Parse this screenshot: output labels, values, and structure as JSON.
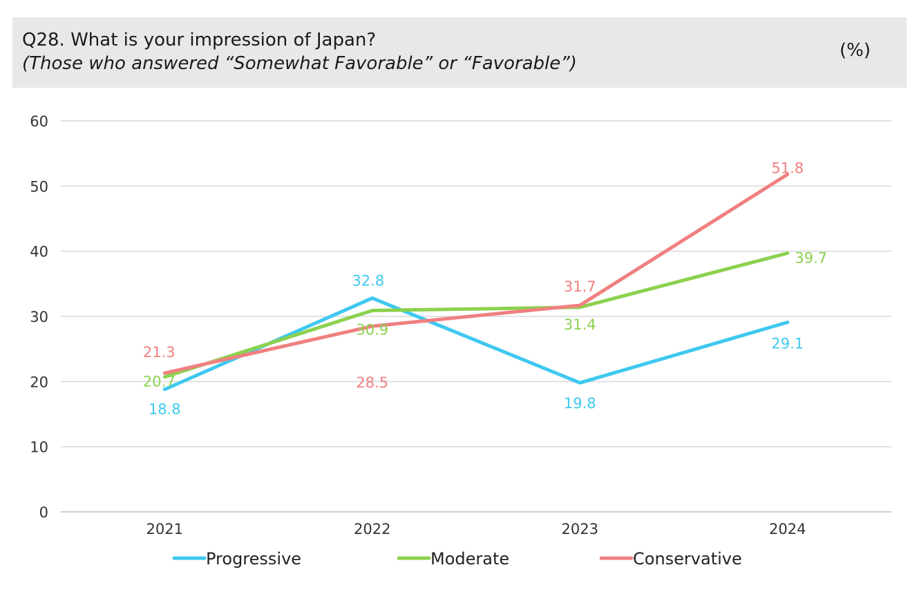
{
  "header": {
    "title": "Q28. What is your impression of Japan?",
    "subtitle": "(Those who answered “Somewhat Favorable” or “Favorable”)",
    "unit": "(%)"
  },
  "chart_data": {
    "type": "line",
    "title": "Q28. What is your impression of Japan?",
    "subtitle": "(Those who answered “Somewhat Favorable” or “Favorable”)",
    "xlabel": "",
    "ylabel": "",
    "categories": [
      "2021",
      "2022",
      "2023",
      "2024"
    ],
    "ylim": [
      0,
      60
    ],
    "yticks": [
      0,
      10,
      20,
      30,
      40,
      50,
      60
    ],
    "grid": true,
    "legend": "bottom",
    "series": [
      {
        "name": "Progressive",
        "color": "#3ec8f0",
        "values": [
          18.8,
          32.8,
          19.8,
          29.1
        ]
      },
      {
        "name": "Moderate",
        "color": "#8cd14e",
        "values": [
          20.7,
          30.9,
          31.4,
          39.7
        ]
      },
      {
        "name": "Conservative",
        "color": "#f08080",
        "values": [
          21.3,
          28.5,
          31.7,
          51.8
        ]
      }
    ]
  }
}
